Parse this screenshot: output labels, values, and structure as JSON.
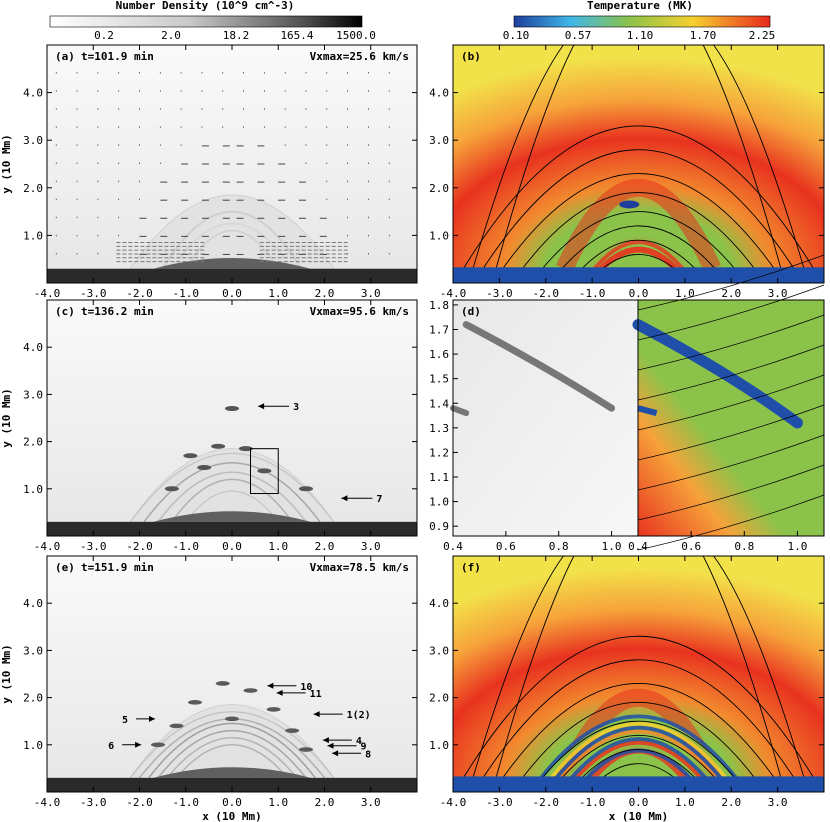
{
  "chart_data": [
    {
      "id": "a",
      "type": "heatmap",
      "panel_label": "(a)",
      "time_label": "t=101.9 min",
      "vmax_label": "Vxmax=25.6 km/s",
      "quantity": "Number Density (10^9 cm^-3)",
      "xlabel": "",
      "ylabel": "y (10 Mm)",
      "xlim": [
        -4.0,
        4.0
      ],
      "ylim": [
        0.0,
        5.0
      ],
      "xticks": [
        "-4.0",
        "-3.0",
        "-2.0",
        "-1.0",
        "0.0",
        "1.0",
        "2.0",
        "3.0"
      ],
      "yticks": [
        "1.0",
        "2.0",
        "3.0",
        "4.0"
      ]
    },
    {
      "id": "b",
      "type": "heatmap",
      "panel_label": "(b)",
      "quantity": "Temperature (MK)",
      "xlim": [
        -4.0,
        4.0
      ],
      "ylim": [
        0.0,
        5.0
      ],
      "xticks": [
        "-4.0",
        "-3.0",
        "-2.0",
        "-1.0",
        "0.0",
        "1.0",
        "2.0",
        "3.0"
      ],
      "yticks": [
        "1.0",
        "2.0",
        "3.0",
        "4.0"
      ]
    },
    {
      "id": "c",
      "type": "heatmap",
      "panel_label": "(c)",
      "time_label": "t=136.2 min",
      "vmax_label": "Vxmax=95.6 km/s",
      "ylabel": "y (10 Mm)",
      "xlim": [
        -4.0,
        4.0
      ],
      "ylim": [
        0.0,
        5.0
      ],
      "xticks": [
        "-4.0",
        "-3.0",
        "-2.0",
        "-1.0",
        "0.0",
        "1.0",
        "2.0",
        "3.0"
      ],
      "yticks": [
        "1.0",
        "2.0",
        "3.0",
        "4.0"
      ],
      "zoom_box": {
        "x": [
          0.4,
          1.0
        ],
        "y": [
          0.9,
          1.85
        ]
      },
      "annotations": [
        {
          "label": "3",
          "x": 0.5,
          "y": 2.75
        },
        {
          "label": "7",
          "x": 2.3,
          "y": 0.8
        }
      ]
    },
    {
      "id": "d",
      "type": "heatmap",
      "panel_label": "(d)",
      "xlim": [
        0.4,
        1.1
      ],
      "ylim": [
        0.86,
        1.82
      ],
      "left_xticks": [
        "0.4",
        "0.6",
        "0.8",
        "1.0"
      ],
      "right_xticks": [
        "0.4",
        "0.6",
        "0.8",
        "1.0"
      ],
      "yticks": [
        "0.9",
        "1.0",
        "1.1",
        "1.2",
        "1.3",
        "1.4",
        "1.5",
        "1.6",
        "1.7",
        "1.8"
      ]
    },
    {
      "id": "e",
      "type": "heatmap",
      "panel_label": "(e)",
      "time_label": "t=151.9 min",
      "vmax_label": "Vxmax=78.5 km/s",
      "xlabel": "x (10 Mm)",
      "ylabel": "y (10 Mm)",
      "xlim": [
        -4.0,
        4.0
      ],
      "ylim": [
        0.0,
        5.0
      ],
      "xticks": [
        "-4.0",
        "-3.0",
        "-2.0",
        "-1.0",
        "0.0",
        "1.0",
        "2.0",
        "3.0"
      ],
      "yticks": [
        "1.0",
        "2.0",
        "3.0",
        "4.0"
      ],
      "annotations": [
        {
          "label": "10",
          "x": 0.7,
          "y": 2.25
        },
        {
          "label": "11",
          "x": 0.9,
          "y": 2.1
        },
        {
          "label": "1(2)",
          "x": 1.7,
          "y": 1.65
        },
        {
          "label": "4",
          "x": 1.9,
          "y": 1.1
        },
        {
          "label": "9",
          "x": 2.0,
          "y": 0.98
        },
        {
          "label": "8",
          "x": 2.1,
          "y": 0.82
        },
        {
          "label": "5",
          "x": -1.6,
          "y": 1.55
        },
        {
          "label": "6",
          "x": -1.9,
          "y": 1.0
        }
      ]
    },
    {
      "id": "f",
      "type": "heatmap",
      "panel_label": "(f)",
      "xlabel": "x (10 Mm)",
      "xlim": [
        -4.0,
        4.0
      ],
      "ylim": [
        0.0,
        5.0
      ],
      "xticks": [
        "-4.0",
        "-3.0",
        "-2.0",
        "-1.0",
        "0.0",
        "1.0",
        "2.0",
        "3.0"
      ],
      "yticks": [
        "1.0",
        "2.0",
        "3.0",
        "4.0"
      ]
    }
  ],
  "colorbars": {
    "density": {
      "title": "Number Density (10^9 cm^-3)",
      "ticks": [
        "0.2",
        "2.0",
        "18.2",
        "165.4",
        "1500.0"
      ]
    },
    "temperature": {
      "title": "Temperature (MK)",
      "ticks": [
        "0.10",
        "0.57",
        "1.10",
        "1.70",
        "2.25"
      ]
    }
  }
}
